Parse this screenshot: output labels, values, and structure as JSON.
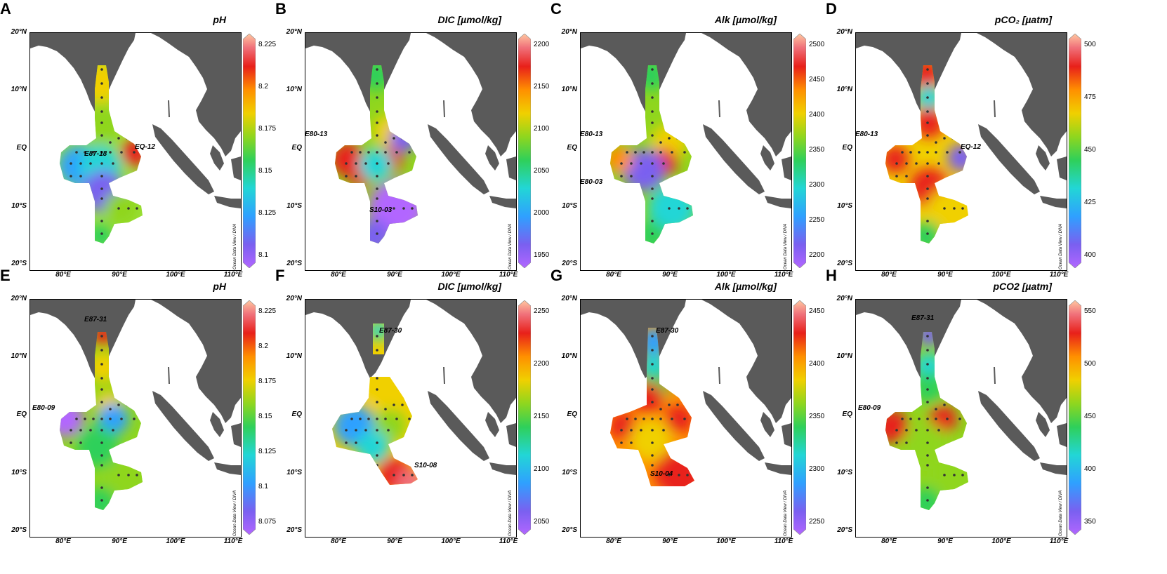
{
  "axes": {
    "y": [
      "20°N",
      "10°N",
      "EQ",
      "10°S",
      "20°S"
    ],
    "x": [
      "80°E",
      "90°E",
      "100°E",
      "110°E"
    ]
  },
  "watermark": "Ocean Data View / DIVA",
  "colors": {
    "land": "#5a5a5a",
    "station": "#333333",
    "colormap": [
      "#b266ff",
      "#7a60f0",
      "#2fa0ff",
      "#22d6d6",
      "#2fd05a",
      "#8fd61e",
      "#f0d000",
      "#ff9000",
      "#e8201a",
      "#f0707a",
      "#ffc8a0"
    ]
  },
  "panels": [
    {
      "letter": "A",
      "title": "pH",
      "ticks": [
        "8.225",
        "8.2",
        "8.175",
        "8.15",
        "8.125",
        "8.1"
      ],
      "stations": [
        "E87-18",
        "EQ-12"
      ],
      "scheme": "a"
    },
    {
      "letter": "B",
      "title": "DIC [µmol/kg]",
      "ticks": [
        "2200",
        "2150",
        "2100",
        "2050",
        "2000",
        "1950"
      ],
      "stations": [
        "E80-13",
        "S10-03"
      ],
      "scheme": "b"
    },
    {
      "letter": "C",
      "title": "Alk [µmol/kg]",
      "ticks": [
        "2500",
        "2450",
        "2400",
        "2350",
        "2300",
        "2250",
        "2200"
      ],
      "stations": [
        "E80-13",
        "E80-03"
      ],
      "scheme": "c"
    },
    {
      "letter": "D",
      "title": "pCO₂ [µatm]",
      "ticks": [
        "500",
        "475",
        "450",
        "425",
        "400"
      ],
      "stations": [
        "E80-13",
        "EQ-12"
      ],
      "scheme": "d"
    },
    {
      "letter": "E",
      "title": "pH",
      "ticks": [
        "8.225",
        "8.2",
        "8.175",
        "8.15",
        "8.125",
        "8.1",
        "8.075"
      ],
      "stations": [
        "E87-31",
        "E80-09"
      ],
      "scheme": "e"
    },
    {
      "letter": "F",
      "title": "DIC [µmol/kg]",
      "ticks": [
        "2250",
        "2200",
        "2150",
        "2100",
        "2050"
      ],
      "stations": [
        "E87-30",
        "S10-08"
      ],
      "scheme": "f"
    },
    {
      "letter": "G",
      "title": "Alk [µmol/kg]",
      "ticks": [
        "2450",
        "2400",
        "2350",
        "2300",
        "2250"
      ],
      "stations": [
        "E87-30",
        "S10-04"
      ],
      "scheme": "g"
    },
    {
      "letter": "H",
      "title": "pCO2 [µatm]",
      "ticks": [
        "550",
        "500",
        "450",
        "400",
        "350"
      ],
      "stations": [
        "E87-31",
        "E80-09"
      ],
      "scheme": "h"
    }
  ]
}
